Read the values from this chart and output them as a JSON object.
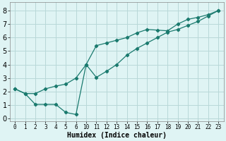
{
  "xlabel": "Humidex (Indice chaleur)",
  "background_color": "#dff4f4",
  "grid_color": "#b8d8d8",
  "line_color": "#1a7a6e",
  "ylim": [
    -0.2,
    8.6
  ],
  "yticks": [
    0,
    1,
    2,
    3,
    4,
    5,
    6,
    7,
    8
  ],
  "xlabel_fontsize": 7,
  "xtick_labels": [
    "0",
    "1",
    "2",
    "3",
    "4",
    "5",
    "6",
    "10",
    "11",
    "12",
    "13",
    "14",
    "15",
    "16",
    "17",
    "18",
    "19",
    "20",
    "21",
    "22",
    "23"
  ],
  "line1_xi": [
    0,
    1,
    2,
    3,
    4,
    5,
    6,
    7,
    8,
    9,
    10,
    11,
    12,
    13,
    14,
    15,
    16,
    17,
    18,
    19,
    20
  ],
  "line1_y": [
    2.2,
    1.85,
    1.05,
    1.05,
    1.05,
    0.45,
    0.3,
    4.0,
    5.4,
    5.6,
    5.8,
    6.0,
    6.35,
    6.6,
    6.55,
    6.5,
    7.0,
    7.35,
    7.5,
    7.7,
    8.0
  ],
  "line2_xi": [
    0,
    1,
    2,
    3,
    4,
    5,
    6,
    7,
    8,
    9,
    10,
    11,
    12,
    13,
    14,
    15,
    16,
    17,
    18,
    19,
    20
  ],
  "line2_y": [
    2.2,
    1.85,
    1.85,
    2.2,
    2.4,
    2.55,
    3.0,
    4.0,
    3.05,
    3.5,
    4.0,
    4.7,
    5.2,
    5.6,
    6.0,
    6.4,
    6.6,
    6.9,
    7.2,
    7.6,
    8.0
  ]
}
